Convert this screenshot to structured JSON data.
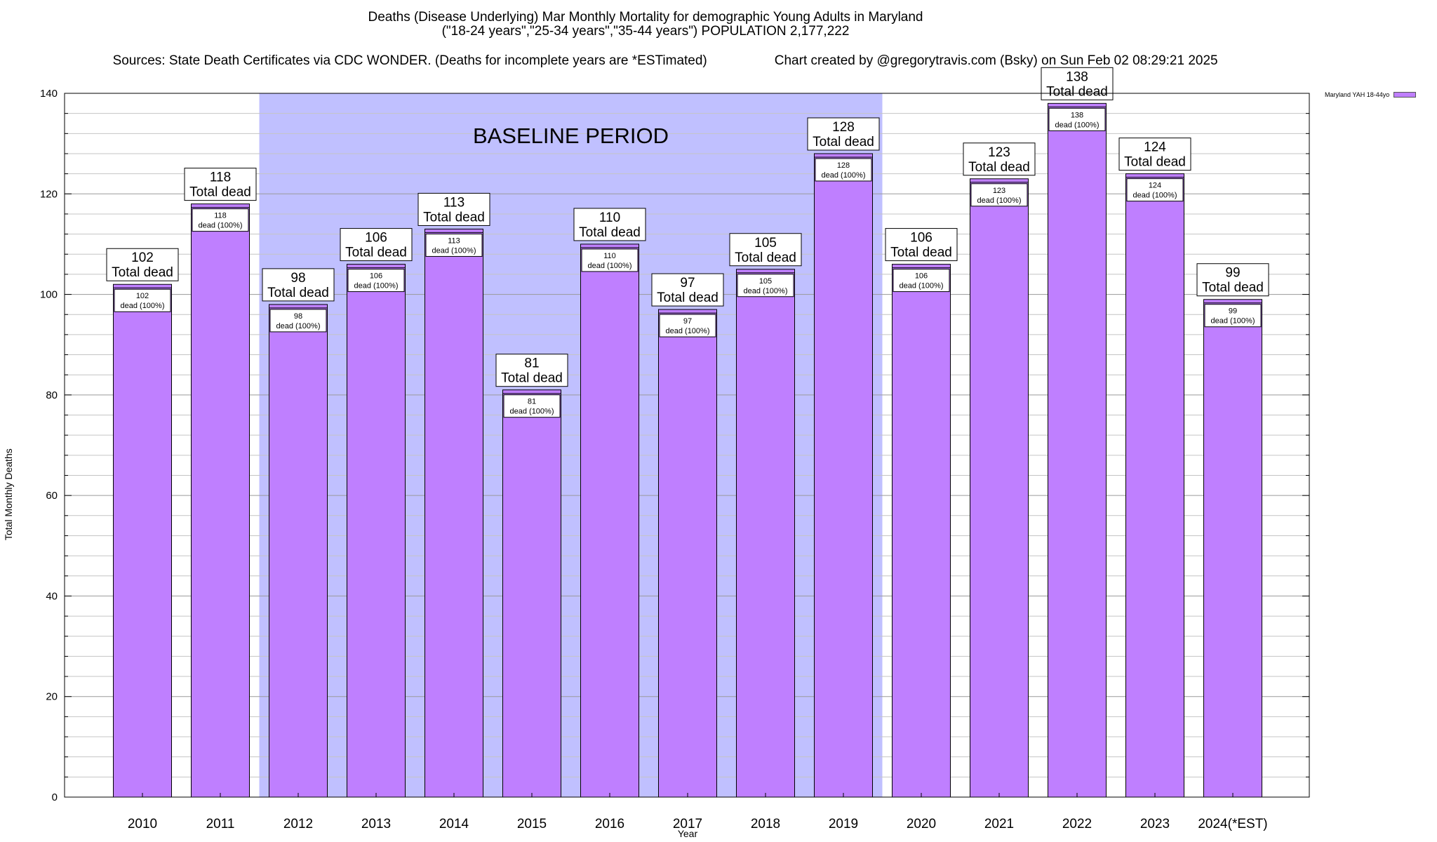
{
  "chart_data": {
    "type": "bar",
    "title": "Deaths (Disease Underlying) Mar Monthly Mortality for demographic Young Adults in Maryland",
    "subtitle": "(\"18-24 years\",\"25-34 years\",\"35-44 years\") POPULATION 2,177,222",
    "sources": "Sources: State Death Certificates via CDC WONDER. (Deaths for incomplete years are *ESTimated)",
    "credit": "Chart created by @gregorytravis.com (Bsky) on Sun Feb 02 08:29:21 2025",
    "xlabel": "Year",
    "ylabel": "Total Monthly Deaths",
    "ylim": [
      0,
      140
    ],
    "yticks": [
      0,
      20,
      40,
      60,
      80,
      100,
      120,
      140
    ],
    "grid": true,
    "categories": [
      "2010",
      "2011",
      "2012",
      "2013",
      "2014",
      "2015",
      "2016",
      "2017",
      "2018",
      "2019",
      "2020",
      "2021",
      "2022",
      "2023",
      "2024(*EST)"
    ],
    "series": [
      {
        "name": "Maryland YAH 18-44yo",
        "color": "#bf7fff",
        "values": [
          102,
          118,
          98,
          106,
          113,
          81,
          110,
          97,
          105,
          128,
          106,
          123,
          138,
          124,
          99
        ]
      }
    ],
    "bar_label_text": "Total dead",
    "inner_label_text": "dead (100%)",
    "baseline": {
      "label": "BASELINE PERIOD",
      "from": "2012",
      "to": "2019",
      "color": "#c0c0ff"
    },
    "legend_position": "top-right"
  }
}
